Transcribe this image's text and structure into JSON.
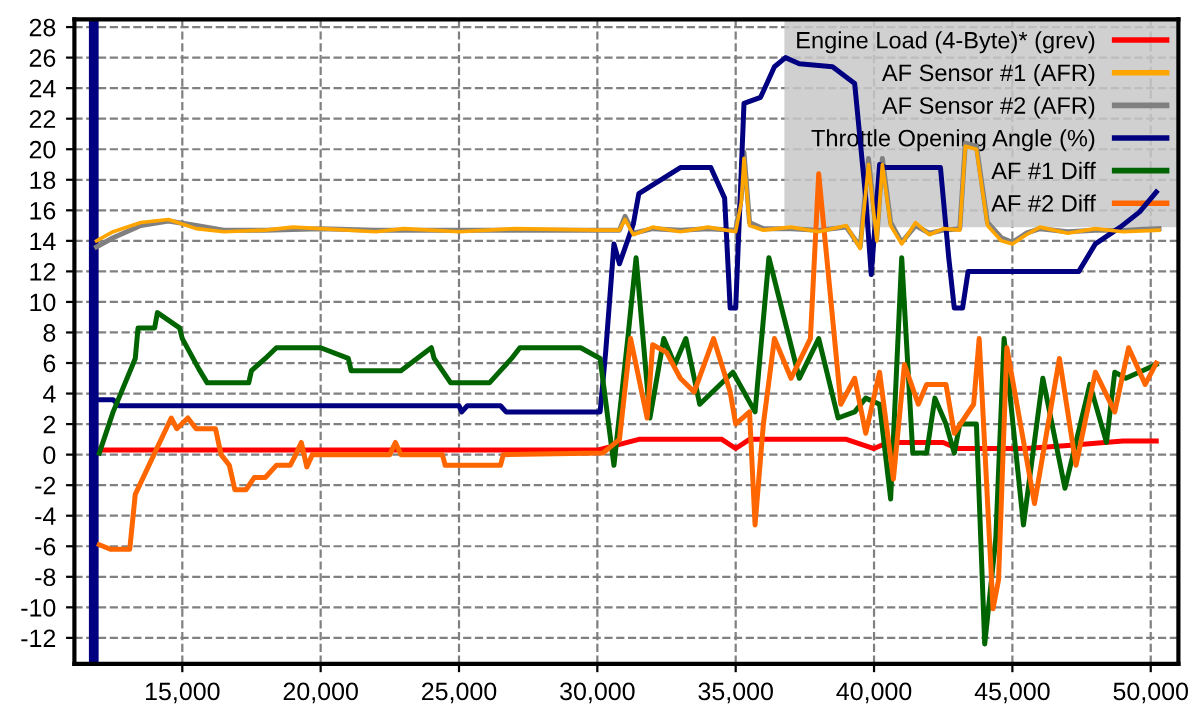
{
  "chart_data": {
    "type": "line",
    "xlim": [
      11100,
      51000
    ],
    "ylim": [
      -13.7,
      28.5
    ],
    "xticks": [
      {
        "value": 15000,
        "label": "15,000"
      },
      {
        "value": 20000,
        "label": "20,000"
      },
      {
        "value": 25000,
        "label": "25,000"
      },
      {
        "value": 30000,
        "label": "30,000"
      },
      {
        "value": 35000,
        "label": "35,000"
      },
      {
        "value": 40000,
        "label": "40,000"
      },
      {
        "value": 45000,
        "label": "45,000"
      },
      {
        "value": 50000,
        "label": "50,000"
      }
    ],
    "yticks": [
      -12,
      -10,
      -8,
      -6,
      -4,
      -2,
      0,
      2,
      4,
      6,
      8,
      10,
      12,
      14,
      16,
      18,
      20,
      22,
      24,
      26,
      28
    ],
    "grid": true,
    "legend": "top right",
    "line_style": "solid",
    "ref_lines": [
      {
        "axis": "x",
        "value": 11800,
        "color": "#000080"
      }
    ],
    "series": [
      {
        "name": "Engine Load (4-Byte)* (grev)",
        "color": "#ff0000",
        "x": [
          11900,
          30000,
          31500,
          34500,
          35000,
          35500,
          39000,
          40000,
          40500,
          42500,
          43000,
          45500,
          47000,
          49000,
          50200
        ],
        "values": [
          0.3,
          0.3,
          1.0,
          1.0,
          0.4,
          1.0,
          1.0,
          0.4,
          0.8,
          0.8,
          0.4,
          0.4,
          0.6,
          0.9,
          0.9
        ]
      },
      {
        "name": "AF Sensor #1 (AFR)",
        "color": "#ffa500",
        "x": [
          11900,
          12500,
          13500,
          14500,
          15500,
          16500,
          18000,
          19000,
          20000,
          22000,
          23000,
          25000,
          27000,
          30000,
          30800,
          31000,
          31300,
          32000,
          33000,
          34000,
          35000,
          35200,
          35300,
          35500,
          36000,
          37000,
          38000,
          39000,
          39500,
          39800,
          40100,
          40300,
          40600,
          41000,
          41500,
          42000,
          42500,
          43100,
          43300,
          43700,
          44100,
          44600,
          45000,
          45500,
          46000,
          47000,
          48000,
          49000,
          50300
        ],
        "values": [
          14.0,
          14.6,
          15.2,
          15.4,
          14.8,
          14.6,
          14.7,
          14.9,
          14.8,
          14.6,
          14.8,
          14.6,
          14.8,
          14.7,
          14.7,
          15.4,
          14.4,
          14.9,
          14.6,
          14.9,
          14.6,
          16.5,
          19.4,
          15.0,
          14.7,
          14.9,
          14.6,
          15.0,
          13.5,
          19.0,
          14.0,
          19.0,
          15.0,
          13.8,
          15.2,
          14.4,
          14.8,
          14.7,
          20.2,
          20.0,
          15.0,
          14.0,
          13.8,
          14.4,
          14.9,
          14.5,
          14.8,
          14.6,
          14.7
        ]
      },
      {
        "name": "AF Sensor #2 (AFR)",
        "color": "#808080",
        "x": [
          11900,
          12500,
          13500,
          14500,
          15500,
          16500,
          18000,
          20000,
          22000,
          25000,
          27000,
          30000,
          30800,
          31000,
          31300,
          32000,
          33000,
          34000,
          35000,
          35200,
          35300,
          35500,
          36000,
          37000,
          38000,
          39000,
          39500,
          39800,
          40100,
          40300,
          40600,
          41000,
          41500,
          42000,
          42500,
          43100,
          43300,
          43700,
          44100,
          44600,
          45000,
          45500,
          46000,
          47000,
          48000,
          49000,
          50300
        ],
        "values": [
          13.6,
          14.2,
          15.0,
          15.3,
          15.0,
          14.7,
          14.7,
          14.8,
          14.7,
          14.7,
          14.7,
          14.7,
          14.7,
          15.6,
          14.5,
          14.8,
          14.7,
          14.8,
          14.7,
          16.8,
          19.8,
          15.2,
          14.8,
          14.8,
          14.7,
          14.9,
          13.6,
          19.4,
          14.2,
          19.4,
          15.2,
          13.9,
          15.0,
          14.5,
          14.7,
          14.8,
          20.4,
          20.2,
          15.2,
          14.2,
          13.9,
          14.5,
          14.8,
          14.6,
          14.7,
          14.7,
          14.8
        ]
      },
      {
        "name": "Throttle Opening Angle (%)",
        "color": "#000080",
        "x": [
          11800,
          12500,
          12700,
          25000,
          25100,
          25300,
          26500,
          26700,
          30100,
          30300,
          30600,
          30800,
          31300,
          31500,
          33000,
          34100,
          34600,
          34800,
          35000,
          35300,
          35900,
          36400,
          36800,
          37300,
          38500,
          39300,
          39700,
          39900,
          40200,
          40400,
          42400,
          42700,
          42900,
          43200,
          43400,
          47400,
          48000,
          48900,
          49600,
          50200
        ],
        "values": [
          3.6,
          3.6,
          3.2,
          3.2,
          2.8,
          3.2,
          3.2,
          2.8,
          2.8,
          6.7,
          13.8,
          12.5,
          15.1,
          17.1,
          18.8,
          18.8,
          16.8,
          9.6,
          9.6,
          23.0,
          23.4,
          25.4,
          26.0,
          25.6,
          25.4,
          24.3,
          16.8,
          11.8,
          19.0,
          18.8,
          18.8,
          12.9,
          9.6,
          9.6,
          12.0,
          12.0,
          13.8,
          14.9,
          15.9,
          17.2
        ]
      },
      {
        "name": "AF #1 Diff",
        "color": "#006400",
        "x": [
          12000,
          12500,
          13300,
          13400,
          14000,
          14100,
          14900,
          15000,
          15600,
          15900,
          17400,
          17500,
          18000,
          18400,
          20000,
          21000,
          21100,
          22900,
          24000,
          24100,
          24700,
          26100,
          26500,
          26900,
          27200,
          29400,
          30100,
          30600,
          31100,
          31400,
          31900,
          32400,
          32800,
          33200,
          33700,
          34900,
          35700,
          36200,
          37300,
          38000,
          38700,
          39300,
          39700,
          40200,
          40600,
          41000,
          41400,
          41900,
          42200,
          42600,
          42900,
          43100,
          43700,
          44000,
          44400,
          44700,
          45400,
          46100,
          46900,
          47800,
          48400,
          48700,
          49100,
          50200
        ],
        "values": [
          0.1,
          2.8,
          6.3,
          8.3,
          8.3,
          9.3,
          8.3,
          7.6,
          5.6,
          4.7,
          4.7,
          5.5,
          6.3,
          7.0,
          7.0,
          6.3,
          5.5,
          5.5,
          7.0,
          6.3,
          4.7,
          4.7,
          5.5,
          6.3,
          7.0,
          7.0,
          6.3,
          -0.7,
          7.6,
          12.9,
          2.4,
          7.6,
          5.9,
          7.6,
          3.3,
          5.4,
          2.8,
          12.9,
          5.0,
          7.6,
          2.4,
          2.8,
          3.7,
          3.3,
          -2.9,
          12.9,
          0.1,
          0.1,
          3.7,
          2.0,
          0.1,
          2.0,
          2.0,
          -12.4,
          -5.5,
          7.6,
          -4.6,
          5.0,
          -2.2,
          4.6,
          0.8,
          5.4,
          5.0,
          5.9
        ]
      },
      {
        "name": "AF #2 Diff",
        "color": "#ff6600",
        "x": [
          12000,
          12400,
          13100,
          13300,
          14000,
          14600,
          14800,
          15200,
          15500,
          16200,
          16400,
          16700,
          16900,
          17300,
          17600,
          18000,
          18400,
          18900,
          19100,
          19300,
          19500,
          19700,
          22500,
          22700,
          22900,
          24400,
          24500,
          26500,
          26600,
          30200,
          30800,
          31200,
          31800,
          32000,
          32500,
          33000,
          33500,
          34200,
          34800,
          35000,
          35500,
          35700,
          36000,
          36400,
          37000,
          37700,
          38000,
          38800,
          39300,
          39700,
          40200,
          40700,
          41100,
          41600,
          41900,
          42600,
          42900,
          43600,
          43800,
          44300,
          44500,
          44800,
          45800,
          46700,
          47300,
          48000,
          48700,
          49200,
          49800,
          50200
        ],
        "values": [
          -5.9,
          -6.2,
          -6.2,
          -2.6,
          0.1,
          2.4,
          1.7,
          2.4,
          1.7,
          1.7,
          0.0,
          -0.7,
          -2.3,
          -2.3,
          -1.5,
          -1.5,
          -0.7,
          -0.7,
          0.0,
          0.8,
          -0.8,
          0.0,
          0.0,
          0.8,
          0.0,
          0.0,
          -0.7,
          -0.7,
          0.0,
          0.1,
          1.0,
          7.6,
          2.4,
          7.2,
          6.7,
          5.0,
          4.1,
          7.6,
          4.1,
          2.0,
          2.8,
          -4.6,
          2.0,
          7.6,
          5.0,
          7.6,
          18.4,
          3.3,
          5.0,
          1.4,
          5.4,
          -1.6,
          5.9,
          3.3,
          4.6,
          4.6,
          1.4,
          3.3,
          7.6,
          -10.1,
          -8.2,
          7.0,
          -3.2,
          6.3,
          -0.7,
          5.4,
          2.8,
          7.0,
          4.6,
          6.0
        ]
      }
    ]
  }
}
